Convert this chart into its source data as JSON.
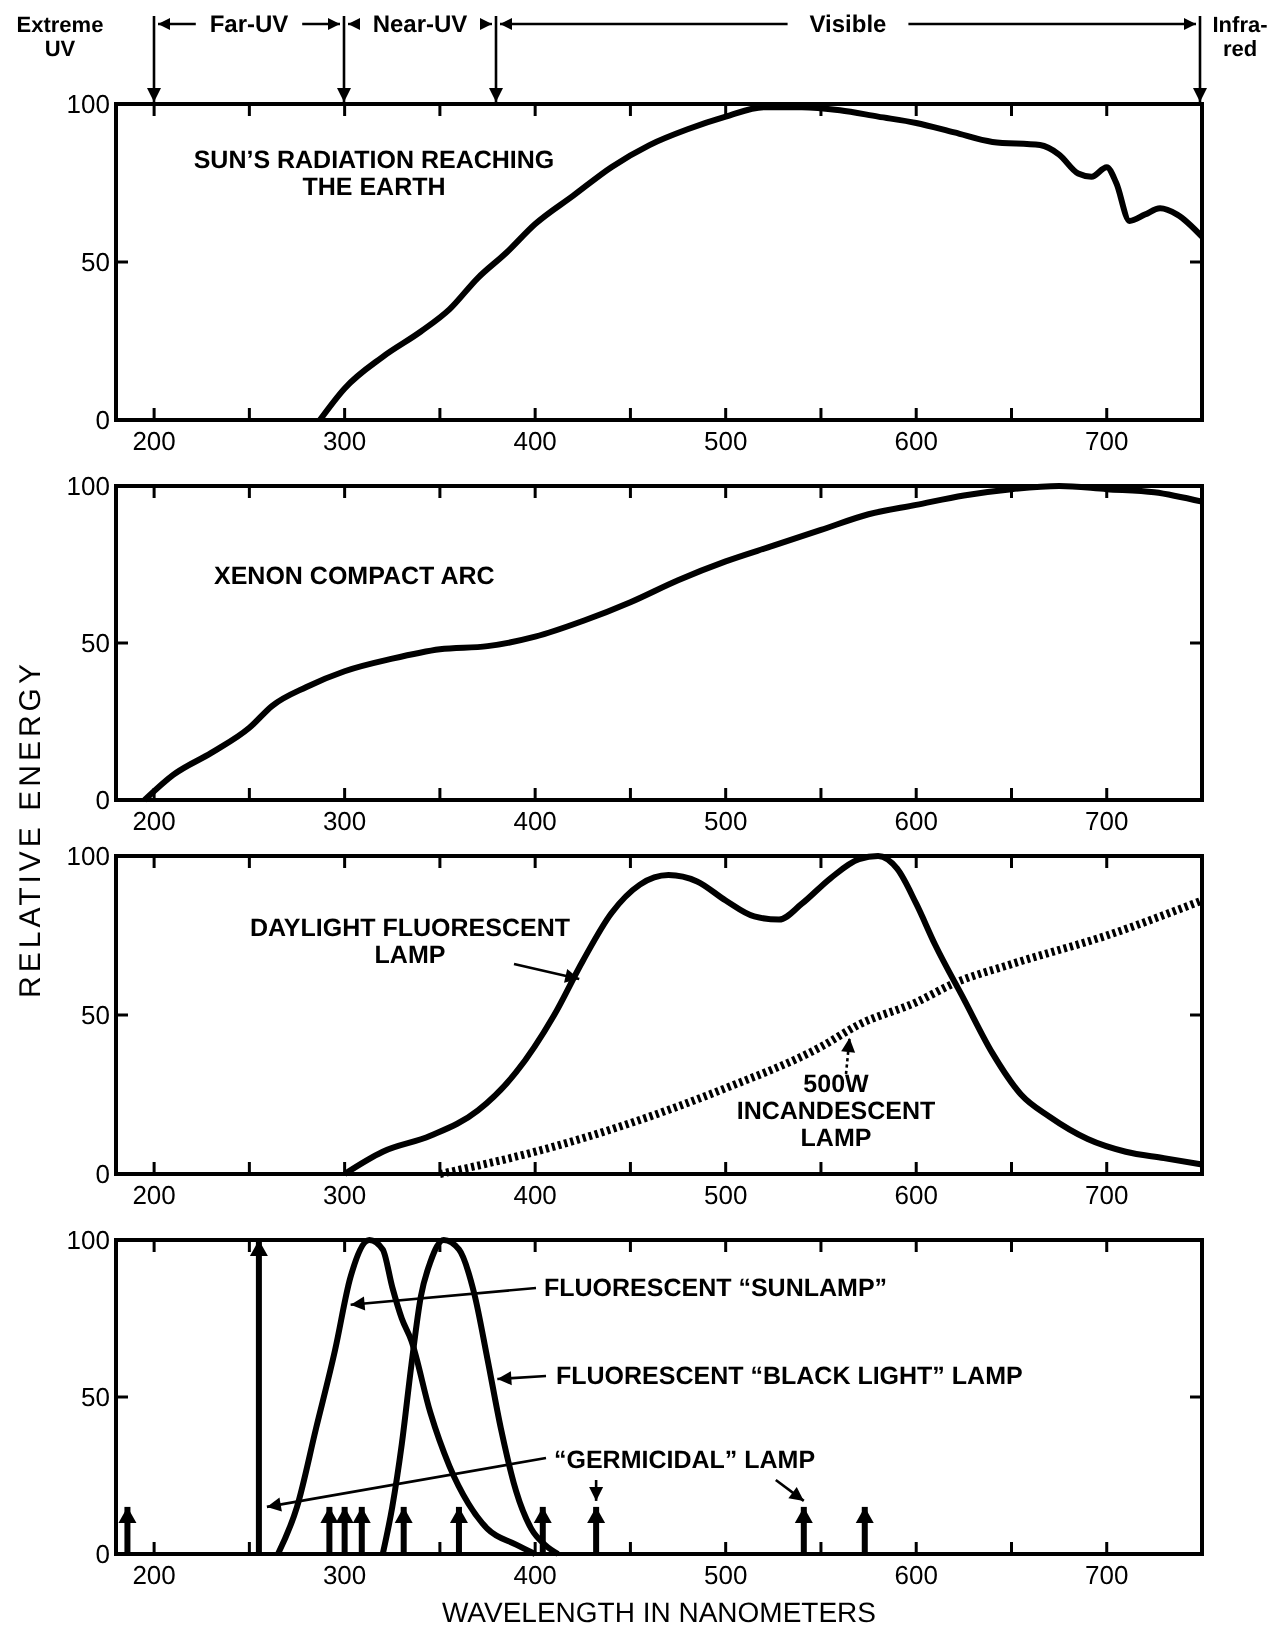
{
  "chart_data": [
    {
      "type": "line",
      "xlim": [
        180,
        750
      ],
      "ylim": [
        0,
        100
      ],
      "xticks": [
        200,
        {
          "value": 250,
          "label": null
        },
        300,
        {
          "value": 350,
          "label": null
        },
        400,
        {
          "value": 450,
          "label": null
        },
        500,
        {
          "value": 550,
          "label": null
        },
        600,
        {
          "value": 650,
          "label": null
        },
        700
      ],
      "yticks": [
        0,
        50,
        100
      ],
      "series": [
        {
          "name": "SUN’S RADIATION REACHING THE EARTH",
          "color": "#000000",
          "x": [
            287,
            300,
            320,
            340,
            355,
            370,
            385,
            400,
            420,
            440,
            460,
            480,
            500,
            520,
            540,
            560,
            580,
            600,
            620,
            640,
            665,
            675,
            685,
            692,
            700,
            705,
            712,
            720,
            728,
            737,
            750
          ],
          "values": [
            0,
            10,
            20,
            28,
            35,
            45,
            53,
            62,
            71,
            80,
            87,
            92,
            96,
            99,
            99,
            98,
            96,
            94,
            91,
            88,
            87,
            84,
            78,
            77,
            80,
            75,
            63,
            65,
            67,
            65,
            58
          ]
        }
      ],
      "annotations": [
        "Extreme UV",
        "Far-UV",
        "Near-UV",
        "Visible",
        "Infra-red"
      ]
    },
    {
      "type": "line",
      "xlim": [
        180,
        750
      ],
      "ylim": [
        0,
        100
      ],
      "xticks": [
        200,
        {
          "value": 250,
          "label": null
        },
        300,
        {
          "value": 350,
          "label": null
        },
        400,
        {
          "value": 450,
          "label": null
        },
        500,
        {
          "value": 550,
          "label": null
        },
        600,
        {
          "value": 650,
          "label": null
        },
        700
      ],
      "yticks": [
        0,
        50,
        100
      ],
      "ylabel": "RELATIVE ENERGY",
      "series": [
        {
          "name": "XENON COMPACT ARC",
          "color": "#000000",
          "x": [
            195,
            210,
            230,
            250,
            262,
            280,
            300,
            325,
            350,
            375,
            400,
            425,
            450,
            475,
            500,
            525,
            550,
            575,
            600,
            625,
            650,
            675,
            700,
            725,
            750
          ],
          "values": [
            0,
            8,
            15,
            23,
            30,
            36,
            41,
            45,
            48,
            49,
            52,
            57,
            63,
            70,
            76,
            81,
            86,
            91,
            94,
            97,
            99,
            100,
            99,
            98,
            95
          ]
        }
      ]
    },
    {
      "type": "line",
      "xlim": [
        180,
        750
      ],
      "ylim": [
        0,
        100
      ],
      "xticks": [
        200,
        {
          "value": 250,
          "label": null
        },
        300,
        {
          "value": 350,
          "label": null
        },
        400,
        {
          "value": 450,
          "label": null
        },
        500,
        {
          "value": 550,
          "label": null
        },
        600,
        {
          "value": 650,
          "label": null
        },
        700
      ],
      "yticks": [
        0,
        50,
        100
      ],
      "series": [
        {
          "name": "DAYLIGHT FLUORESCENT LAMP",
          "color": "#000000",
          "x": [
            300,
            320,
            345,
            370,
            390,
            410,
            425,
            440,
            455,
            470,
            485,
            500,
            515,
            528,
            540,
            555,
            570,
            580,
            590,
            600,
            610,
            625,
            640,
            655,
            670,
            690,
            710,
            730,
            750
          ],
          "values": [
            0,
            7,
            12,
            20,
            32,
            50,
            67,
            82,
            91,
            94,
            92,
            86,
            81,
            80,
            85,
            93,
            99,
            100,
            96,
            85,
            72,
            55,
            38,
            25,
            18,
            11,
            7,
            5,
            3
          ]
        },
        {
          "name": "500W INCANDESCENT LAMP",
          "color": "#000000",
          "line_style": "dotted",
          "x": [
            350,
            400,
            450,
            500,
            550,
            570,
            600,
            620,
            650,
            700,
            750
          ],
          "values": [
            0,
            7,
            16,
            27,
            40,
            47,
            54,
            60,
            66,
            75,
            86
          ]
        }
      ]
    },
    {
      "type": "line",
      "xlim": [
        180,
        750
      ],
      "ylim": [
        0,
        100
      ],
      "xticks": [
        200,
        {
          "value": 250,
          "label": null
        },
        300,
        {
          "value": 350,
          "label": null
        },
        400,
        {
          "value": 450,
          "label": null
        },
        500,
        {
          "value": 550,
          "label": null
        },
        600,
        {
          "value": 650,
          "label": null
        },
        700
      ],
      "yticks": [
        0,
        50,
        100
      ],
      "xlabel": "WAVELENGTH IN NANOMETERS",
      "series": [
        {
          "name": "FLUORESCENT “SUNLAMP”",
          "color": "#000000",
          "x": [
            265,
            275,
            285,
            295,
            303,
            313,
            320,
            325,
            330,
            335,
            345,
            355,
            365,
            375,
            390,
            400
          ],
          "values": [
            0,
            15,
            40,
            65,
            88,
            100,
            97,
            85,
            75,
            68,
            45,
            28,
            16,
            8,
            3,
            0
          ]
        },
        {
          "name": "FLUORESCENT “BLACK LIGHT” LAMP",
          "color": "#000000",
          "x": [
            320,
            325,
            330,
            335,
            340,
            345,
            352,
            360,
            368,
            375,
            382,
            390,
            398,
            405,
            412
          ],
          "values": [
            0,
            15,
            35,
            60,
            82,
            93,
            100,
            97,
            83,
            62,
            40,
            20,
            8,
            3,
            0
          ]
        },
        {
          "name": "“GERMICIDAL” LAMP",
          "type": "bar",
          "color": "#000000",
          "x": [
            186,
            255,
            292,
            300,
            309,
            331,
            360,
            404,
            432,
            541,
            573
          ],
          "values": [
            15,
            100,
            15,
            15,
            15,
            15,
            15,
            15,
            15,
            15,
            15
          ]
        }
      ]
    }
  ]
}
